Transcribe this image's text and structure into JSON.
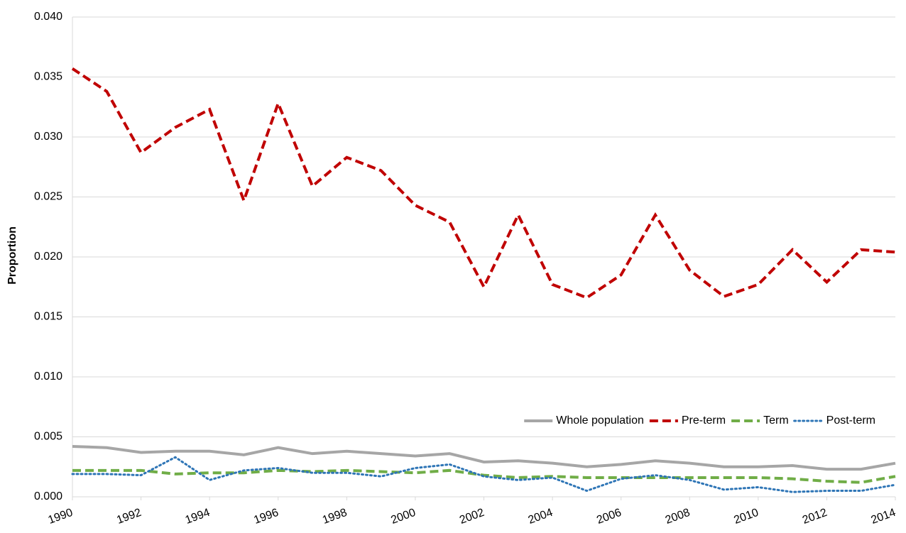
{
  "chart_data": {
    "type": "line",
    "y_label": "Proportion",
    "x": [
      1990,
      1991,
      1992,
      1993,
      1994,
      1995,
      1996,
      1997,
      1998,
      1999,
      2000,
      2001,
      2002,
      2003,
      2004,
      2005,
      2006,
      2007,
      2008,
      2009,
      2010,
      2011,
      2012,
      2013,
      2014
    ],
    "xlim": [
      1990,
      2014
    ],
    "xticks": [
      1990,
      1992,
      1994,
      1996,
      1998,
      2000,
      2002,
      2004,
      2006,
      2008,
      2010,
      2012,
      2014
    ],
    "ylim": [
      0,
      0.04
    ],
    "yticks": [
      {
        "value": 0,
        "label": "0.000"
      },
      {
        "value": 0.005,
        "label": "0.005"
      },
      {
        "value": 0.01,
        "label": "0.010"
      },
      {
        "value": 0.015,
        "label": "0.015"
      },
      {
        "value": 0.02,
        "label": "0.020"
      },
      {
        "value": 0.025,
        "label": "0.025"
      },
      {
        "value": 0.03,
        "label": "0.030"
      },
      {
        "value": 0.035,
        "label": "0.035"
      },
      {
        "value": 0.04,
        "label": "0.040"
      }
    ],
    "grid": true,
    "legend": "bottom-right",
    "series": [
      {
        "name": "Whole population",
        "color": "#a6a6a6",
        "line_style": "solid",
        "values": [
          0.0042,
          0.0041,
          0.0037,
          0.0038,
          0.0038,
          0.0035,
          0.0041,
          0.0036,
          0.0038,
          0.0036,
          0.0034,
          0.0036,
          0.0029,
          0.003,
          0.0028,
          0.0025,
          0.0027,
          0.003,
          0.0028,
          0.0025,
          0.0025,
          0.0026,
          0.0023,
          0.0023,
          0.0028
        ]
      },
      {
        "name": "Pre-term",
        "color": "#c00000",
        "line_style": "dashed",
        "values": [
          0.0357,
          0.0338,
          0.0287,
          0.0308,
          0.0323,
          0.0247,
          0.0328,
          0.0259,
          0.0283,
          0.0272,
          0.0243,
          0.0229,
          0.0175,
          0.0235,
          0.0177,
          0.0166,
          0.0185,
          0.0235,
          0.0189,
          0.0167,
          0.0177,
          0.0206,
          0.0179,
          0.0206,
          0.0204
        ]
      },
      {
        "name": "Term",
        "color": "#70ad47",
        "line_style": "dashed",
        "values": [
          0.0022,
          0.0022,
          0.0022,
          0.0019,
          0.002,
          0.002,
          0.0022,
          0.0021,
          0.0022,
          0.0021,
          0.002,
          0.0022,
          0.0018,
          0.0016,
          0.0017,
          0.0016,
          0.0016,
          0.0016,
          0.0016,
          0.0016,
          0.0016,
          0.0015,
          0.0013,
          0.0012,
          0.0017
        ]
      },
      {
        "name": "Post-term",
        "color": "#2e75b6",
        "line_style": "dotted",
        "values": [
          0.0019,
          0.0019,
          0.0018,
          0.0033,
          0.0014,
          0.0022,
          0.0024,
          0.002,
          0.002,
          0.0017,
          0.0024,
          0.0027,
          0.0017,
          0.0014,
          0.0016,
          0.0005,
          0.0015,
          0.0018,
          0.0014,
          0.0006,
          0.0008,
          0.0004,
          0.0005,
          0.0005,
          0.001
        ]
      }
    ]
  }
}
